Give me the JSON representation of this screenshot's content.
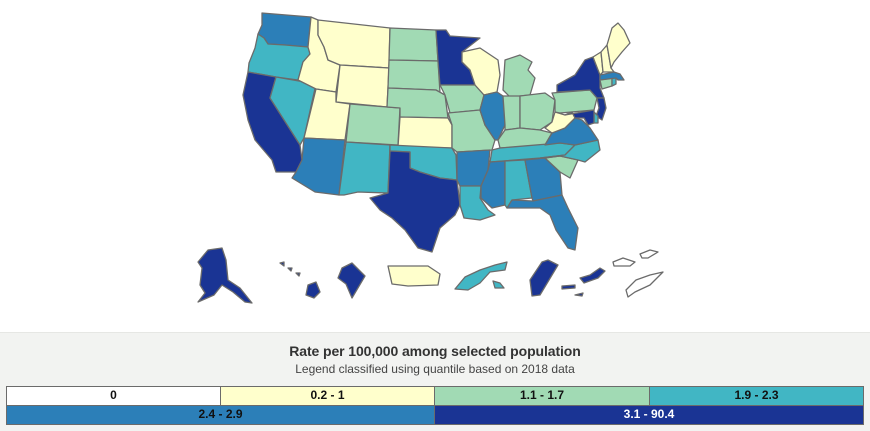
{
  "map": {
    "title": "US states and territories choropleth",
    "classes": [
      {
        "id": "c0",
        "label": "0",
        "color": "#ffffff",
        "text_color": "#111111"
      },
      {
        "id": "c1",
        "label": "0.2 - 1",
        "color": "#ffffcc",
        "text_color": "#111111"
      },
      {
        "id": "c2",
        "label": "1.1 - 1.7",
        "color": "#a1dab4",
        "text_color": "#111111"
      },
      {
        "id": "c3",
        "label": "1.9 - 2.3",
        "color": "#41b6c4",
        "text_color": "#111111"
      },
      {
        "id": "c4",
        "label": "2.4 - 2.9",
        "color": "#2c7fb8",
        "text_color": "#111111"
      },
      {
        "id": "c5",
        "label": "3.1 - 90.4",
        "color": "#1a3494",
        "text_color": "#ffffff"
      }
    ],
    "regions": [
      {
        "name": "Washington",
        "class": "c4"
      },
      {
        "name": "Oregon",
        "class": "c3"
      },
      {
        "name": "California",
        "class": "c5"
      },
      {
        "name": "Nevada",
        "class": "c3"
      },
      {
        "name": "Idaho",
        "class": "c1"
      },
      {
        "name": "Montana",
        "class": "c1"
      },
      {
        "name": "Wyoming",
        "class": "c1"
      },
      {
        "name": "Utah",
        "class": "c1"
      },
      {
        "name": "Arizona",
        "class": "c4"
      },
      {
        "name": "Colorado",
        "class": "c2"
      },
      {
        "name": "New Mexico",
        "class": "c3"
      },
      {
        "name": "North Dakota",
        "class": "c2"
      },
      {
        "name": "South Dakota",
        "class": "c2"
      },
      {
        "name": "Nebraska",
        "class": "c2"
      },
      {
        "name": "Kansas",
        "class": "c1"
      },
      {
        "name": "Oklahoma",
        "class": "c3"
      },
      {
        "name": "Texas",
        "class": "c5"
      },
      {
        "name": "Minnesota",
        "class": "c5"
      },
      {
        "name": "Iowa",
        "class": "c2"
      },
      {
        "name": "Missouri",
        "class": "c2"
      },
      {
        "name": "Arkansas",
        "class": "c4"
      },
      {
        "name": "Louisiana",
        "class": "c3"
      },
      {
        "name": "Wisconsin",
        "class": "c1"
      },
      {
        "name": "Illinois",
        "class": "c4"
      },
      {
        "name": "Michigan",
        "class": "c2"
      },
      {
        "name": "Indiana",
        "class": "c2"
      },
      {
        "name": "Ohio",
        "class": "c2"
      },
      {
        "name": "Kentucky",
        "class": "c2"
      },
      {
        "name": "Tennessee",
        "class": "c3"
      },
      {
        "name": "Mississippi",
        "class": "c4"
      },
      {
        "name": "Alabama",
        "class": "c3"
      },
      {
        "name": "Georgia",
        "class": "c4"
      },
      {
        "name": "Florida",
        "class": "c4"
      },
      {
        "name": "South Carolina",
        "class": "c2"
      },
      {
        "name": "North Carolina",
        "class": "c3"
      },
      {
        "name": "Virginia",
        "class": "c4"
      },
      {
        "name": "West Virginia",
        "class": "c1"
      },
      {
        "name": "Pennsylvania",
        "class": "c2"
      },
      {
        "name": "New York",
        "class": "c5"
      },
      {
        "name": "New Jersey",
        "class": "c5"
      },
      {
        "name": "Delaware",
        "class": "c3"
      },
      {
        "name": "Maryland",
        "class": "c5"
      },
      {
        "name": "Connecticut",
        "class": "c2"
      },
      {
        "name": "Rhode Island",
        "class": "c3"
      },
      {
        "name": "Massachusetts",
        "class": "c4"
      },
      {
        "name": "Vermont",
        "class": "c1"
      },
      {
        "name": "New Hampshire",
        "class": "c1"
      },
      {
        "name": "Maine",
        "class": "c1"
      },
      {
        "name": "Alaska",
        "class": "c5"
      },
      {
        "name": "Hawaii",
        "class": "c5"
      },
      {
        "name": "District of Columbia",
        "class": "c5"
      },
      {
        "name": "Puerto Rico",
        "class": "c1"
      },
      {
        "name": "American Samoa",
        "class": "c3"
      },
      {
        "name": "Guam",
        "class": "c5"
      },
      {
        "name": "Northern Mariana Islands",
        "class": "c5"
      },
      {
        "name": "U.S. Virgin Islands",
        "class": "c0"
      }
    ]
  },
  "legend": {
    "title": "Rate per 100,000 among selected population",
    "subtitle": "Legend classified using quantile based on 2018 data"
  }
}
